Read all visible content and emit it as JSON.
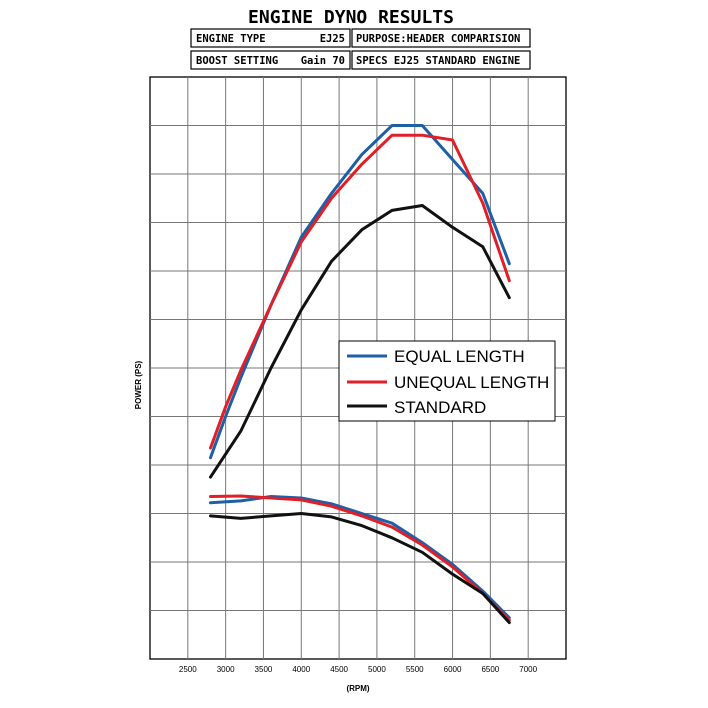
{
  "chart_data": {
    "type": "line",
    "title": "ENGINE DYNO RESULTS",
    "info": {
      "engine_type_label": "ENGINE TYPE",
      "engine_type_value": "EJ25",
      "purpose": "PURPOSE:HEADER COMPARISION",
      "boost_label": "BOOST SETTING",
      "boost_value": "Gain 70",
      "specs": "SPECS  EJ25 STANDARD ENGINE"
    },
    "xlabel": "(RPM)",
    "ylabel": "POWER (PS)",
    "xlim": [
      2000,
      7500
    ],
    "x_ticks": [
      2500,
      3000,
      3500,
      4000,
      4500,
      5000,
      5500,
      6000,
      6500,
      7000
    ],
    "grid": true,
    "legend_position": "center-right",
    "series": [
      {
        "name": "EQUAL LENGTH",
        "color": "#1f5fa8",
        "upper": {
          "x": [
            2800,
            3000,
            3200,
            3600,
            4000,
            4400,
            4800,
            5200,
            5600,
            6000,
            6400,
            6750
          ],
          "y": [
            41.5,
            50,
            58,
            73,
            87,
            96,
            104,
            110,
            110,
            103,
            96,
            81.5
          ]
        },
        "lower": {
          "x": [
            2800,
            3200,
            3600,
            4000,
            4400,
            4800,
            5200,
            5600,
            6000,
            6400,
            6750
          ],
          "y": [
            32.2,
            32.6,
            33.5,
            33.2,
            32,
            30,
            28,
            24,
            19.5,
            14,
            8.5
          ]
        }
      },
      {
        "name": "UNEQUAL LENGTH",
        "color": "#e01f26",
        "upper": {
          "x": [
            2800,
            3000,
            3200,
            3600,
            4000,
            4400,
            4800,
            5200,
            5600,
            6000,
            6400,
            6750
          ],
          "y": [
            43.5,
            52,
            59.5,
            73,
            86,
            95,
            102,
            108,
            108,
            107,
            94,
            78
          ]
        },
        "lower": {
          "x": [
            2800,
            3200,
            3600,
            4000,
            4400,
            4800,
            5200,
            5600,
            6000,
            6400,
            6750
          ],
          "y": [
            33.5,
            33.6,
            33.2,
            32.8,
            31.5,
            29.5,
            27.2,
            23.5,
            19,
            13.5,
            8
          ]
        }
      },
      {
        "name": "STANDARD",
        "color": "#111111",
        "upper": {
          "x": [
            2800,
            3200,
            3600,
            4000,
            4400,
            4800,
            5200,
            5600,
            6000,
            6400,
            6750
          ],
          "y": [
            37.5,
            47,
            60,
            72,
            82,
            88.5,
            92.5,
            93.5,
            89,
            85,
            74.5
          ]
        },
        "lower": {
          "x": [
            2800,
            3200,
            3600,
            4000,
            4400,
            4800,
            5200,
            5600,
            6000,
            6400,
            6750
          ],
          "y": [
            29.5,
            29,
            29.5,
            30,
            29.3,
            27.5,
            25,
            22,
            17.5,
            13.5,
            7.5
          ]
        }
      }
    ]
  }
}
